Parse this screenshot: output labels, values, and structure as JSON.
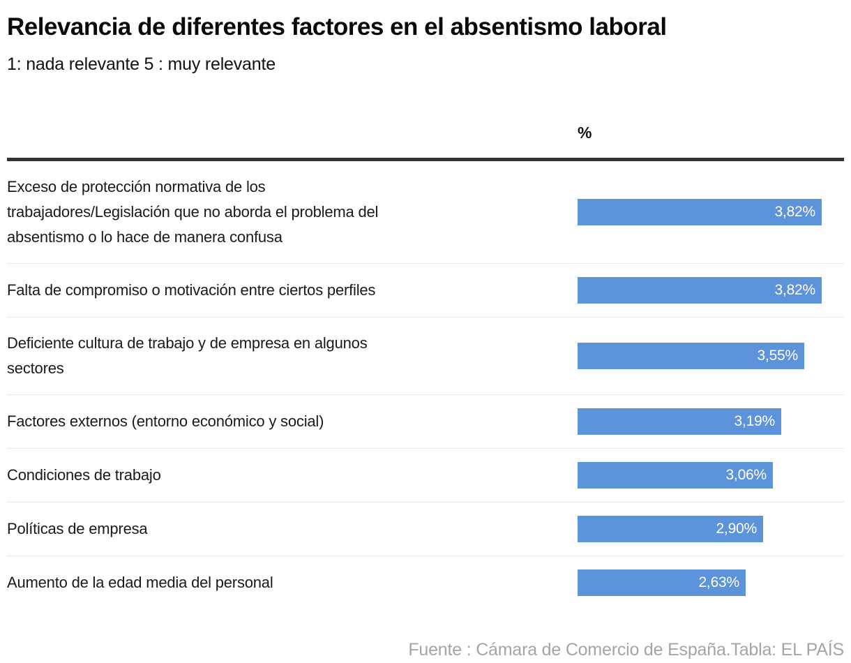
{
  "header": {
    "title": "Relevancia de diferentes factores en el absentismo laboral",
    "subtitle": "1: nada relevante 5 : muy relevante"
  },
  "chart_data": {
    "type": "bar",
    "orientation": "horizontal",
    "column_header": "%",
    "xlim": [
      0,
      3.82
    ],
    "bar_color": "#5c93db",
    "grid": false,
    "legend_position": "none",
    "categories": [
      "Exceso de protección normativa de los\ntrabajadores/Legislación que no aborda el problema del\nabsentismo o lo hace de manera confusa",
      "Falta de compromiso o motivación entre ciertos perfiles",
      "Deficiente cultura de trabajo y de empresa en algunos\nsectores",
      "Factores externos (entorno económico y social)",
      "Condiciones de trabajo",
      "Políticas de empresa",
      "Aumento de la edad media del personal"
    ],
    "values": [
      3.82,
      3.82,
      3.55,
      3.19,
      3.06,
      2.9,
      2.63
    ],
    "value_labels": [
      "3,82%",
      "3,82%",
      "3,55%",
      "3,19%",
      "3,06%",
      "2,90%",
      "2,63%"
    ]
  },
  "footer": {
    "source": "Fuente : Cámara de Comercio de España.Tabla: EL PAÍS"
  }
}
